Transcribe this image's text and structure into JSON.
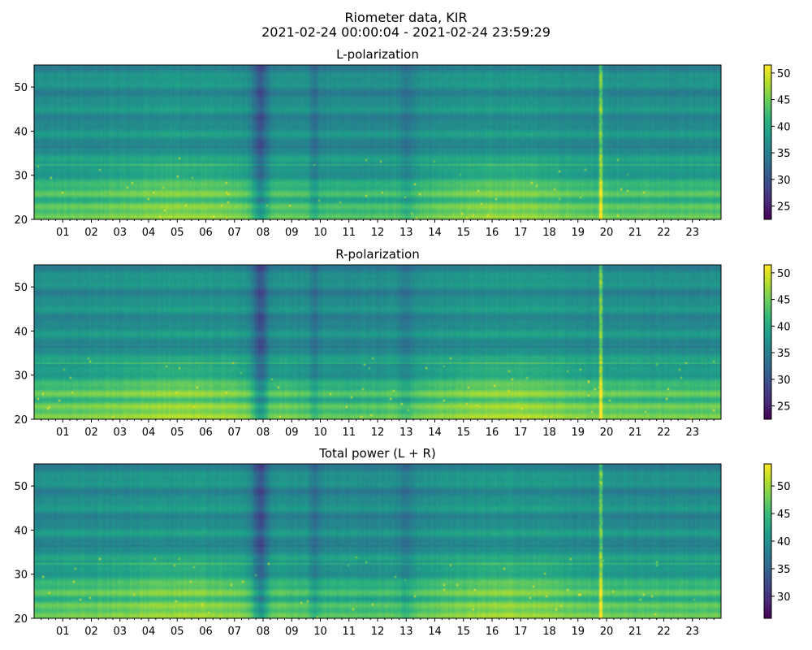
{
  "figure": {
    "title_line1": "Riometer data, KIR",
    "title_line2": "2021-02-24 00:00:04 - 2021-02-24 23:59:29"
  },
  "colors": {
    "cmap": "viridis",
    "viridis_stops": [
      "#440154",
      "#482878",
      "#3e4989",
      "#31688e",
      "#26828e",
      "#1f9e89",
      "#35b779",
      "#6ece58",
      "#b5de2b",
      "#fde725"
    ]
  },
  "chart_data": [
    {
      "type": "heatmap",
      "title": "L-polarization",
      "x_tick_labels": [
        "01",
        "02",
        "03",
        "04",
        "05",
        "06",
        "07",
        "08",
        "09",
        "10",
        "11",
        "12",
        "13",
        "14",
        "15",
        "16",
        "17",
        "18",
        "19",
        "20",
        "21",
        "22",
        "23"
      ],
      "xlim": [
        0,
        24
      ],
      "ylim": [
        20,
        55
      ],
      "y_ticks": [
        20,
        30,
        40,
        50
      ],
      "colorbar": {
        "range": [
          22.5,
          51.5
        ],
        "ticks": [
          25,
          30,
          35,
          40,
          45,
          50
        ]
      },
      "features": {
        "base_level": 36.5,
        "band_22_26_level": 44,
        "band_26_32_level": 41,
        "horizontal_line_y": 32.5,
        "horizontal_line_dark_y": 36.3,
        "dark_column_hours": [
          7.9,
          9.8,
          13.0
        ],
        "bright_vertical_line_hour": 19.8,
        "quiet_hours_bright": [
          [
            3.5,
            6.8
          ],
          [
            15.0,
            18.0
          ]
        ]
      }
    },
    {
      "type": "heatmap",
      "title": "R-polarization",
      "x_tick_labels": [
        "01",
        "02",
        "03",
        "04",
        "05",
        "06",
        "07",
        "08",
        "09",
        "10",
        "11",
        "12",
        "13",
        "14",
        "15",
        "16",
        "17",
        "18",
        "19",
        "20",
        "21",
        "22",
        "23"
      ],
      "xlim": [
        0,
        24
      ],
      "ylim": [
        20,
        55
      ],
      "y_ticks": [
        20,
        30,
        40,
        50
      ],
      "colorbar": {
        "range": [
          22.5,
          51.5
        ],
        "ticks": [
          25,
          30,
          35,
          40,
          45,
          50
        ]
      },
      "features": {
        "base_level": 36.5,
        "band_22_26_level": 45,
        "band_26_32_level": 41.5,
        "horizontal_line_y": 32.8,
        "horizontal_line_dark_y": 36.5,
        "dark_column_hours": [
          7.9,
          9.8,
          13.0
        ],
        "bright_vertical_line_hour": 19.8,
        "quiet_hours_bright": [
          [
            3.5,
            6.8
          ],
          [
            15.0,
            18.0
          ]
        ]
      }
    },
    {
      "type": "heatmap",
      "title": "Total power (L + R)",
      "x_tick_labels": [
        "01",
        "02",
        "03",
        "04",
        "05",
        "06",
        "07",
        "08",
        "09",
        "10",
        "11",
        "12",
        "13",
        "14",
        "15",
        "16",
        "17",
        "18",
        "19",
        "20",
        "21",
        "22",
        "23"
      ],
      "xlim": [
        0,
        24
      ],
      "ylim": [
        20,
        55
      ],
      "y_ticks": [
        20,
        30,
        40,
        50
      ],
      "colorbar": {
        "range": [
          26,
          54
        ],
        "ticks": [
          30,
          35,
          40,
          45,
          50
        ]
      },
      "features": {
        "base_level": 39.5,
        "band_22_26_level": 47,
        "band_26_32_level": 44,
        "horizontal_line_y": 32.5,
        "horizontal_line_dark_y": 36.4,
        "dark_column_hours": [
          7.9,
          9.8,
          13.0
        ],
        "bright_vertical_line_hour": 19.8,
        "quiet_hours_bright": [
          [
            3.5,
            6.8
          ],
          [
            15.0,
            18.0
          ]
        ]
      }
    }
  ]
}
